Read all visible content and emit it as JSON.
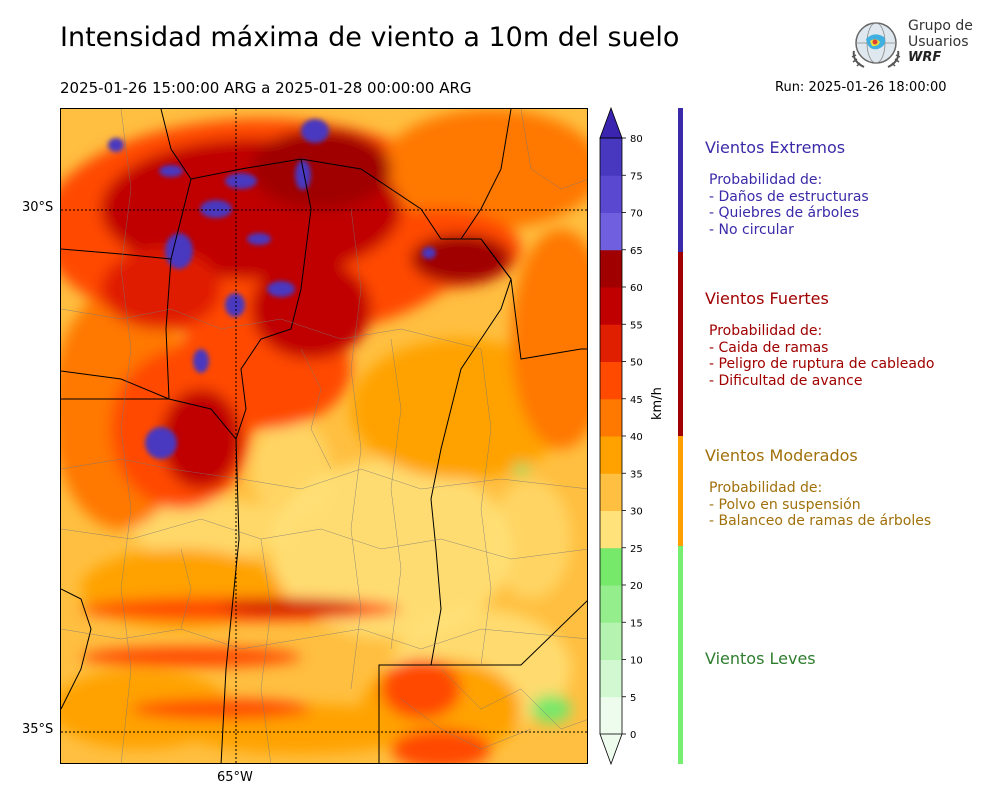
{
  "header": {
    "title": "Intensidad máxima de viento a 10m del suelo",
    "period": "2025-01-26 15:00:00 ARG  a  2025-01-28 00:00:00 ARG",
    "run": "Run: 2025-01-26 18:00:00"
  },
  "logo": {
    "line1": "Grupo de",
    "line2": "Usuarios",
    "line3": "WRF"
  },
  "map": {
    "lat_labels": [
      "30°S",
      "35°S"
    ],
    "lon_labels": [
      "65°W"
    ],
    "gridlines": "dotted"
  },
  "colorbar": {
    "unit": "km/h",
    "ticks": [
      "0",
      "5",
      "10",
      "15",
      "20",
      "25",
      "30",
      "35",
      "40",
      "45",
      "50",
      "55",
      "60",
      "65",
      "70",
      "75",
      "80"
    ],
    "colors": [
      "#eefcee",
      "#d2f8d2",
      "#b4f4b0",
      "#94ee8c",
      "#76e86a",
      "#ffe27a",
      "#ffbf40",
      "#ffa200",
      "#ff7800",
      "#ff4a00",
      "#e01e00",
      "#c00000",
      "#a00000",
      "#7060e0",
      "#5a48d0",
      "#4838c0",
      "#3a24b0"
    ]
  },
  "categories": [
    {
      "title": "Vientos Extremos",
      "color": "#3a2aa8",
      "text_color": "#3a2aa8",
      "lines": [
        "Probabilidad de:",
        "- Daños de estructuras",
        "- Quiebres de árboles",
        "- No circular"
      ]
    },
    {
      "title": "Vientos Fuertes",
      "color": "#a00000",
      "text_color": "#a00000",
      "lines": [
        "Probabilidad de:",
        "- Caida de ramas",
        "- Peligro de ruptura de cableado",
        "- Dificultad de avance"
      ]
    },
    {
      "title": "Vientos Moderados",
      "color": "#ffa000",
      "text_color": "#a0700a",
      "lines": [
        "Probabilidad de:",
        "- Polvo en suspensión",
        "- Balanceo de ramas de árboles"
      ]
    },
    {
      "title": "Vientos Leves",
      "color": "#76ee70",
      "text_color": "#2e7d2e",
      "lines": []
    }
  ]
}
